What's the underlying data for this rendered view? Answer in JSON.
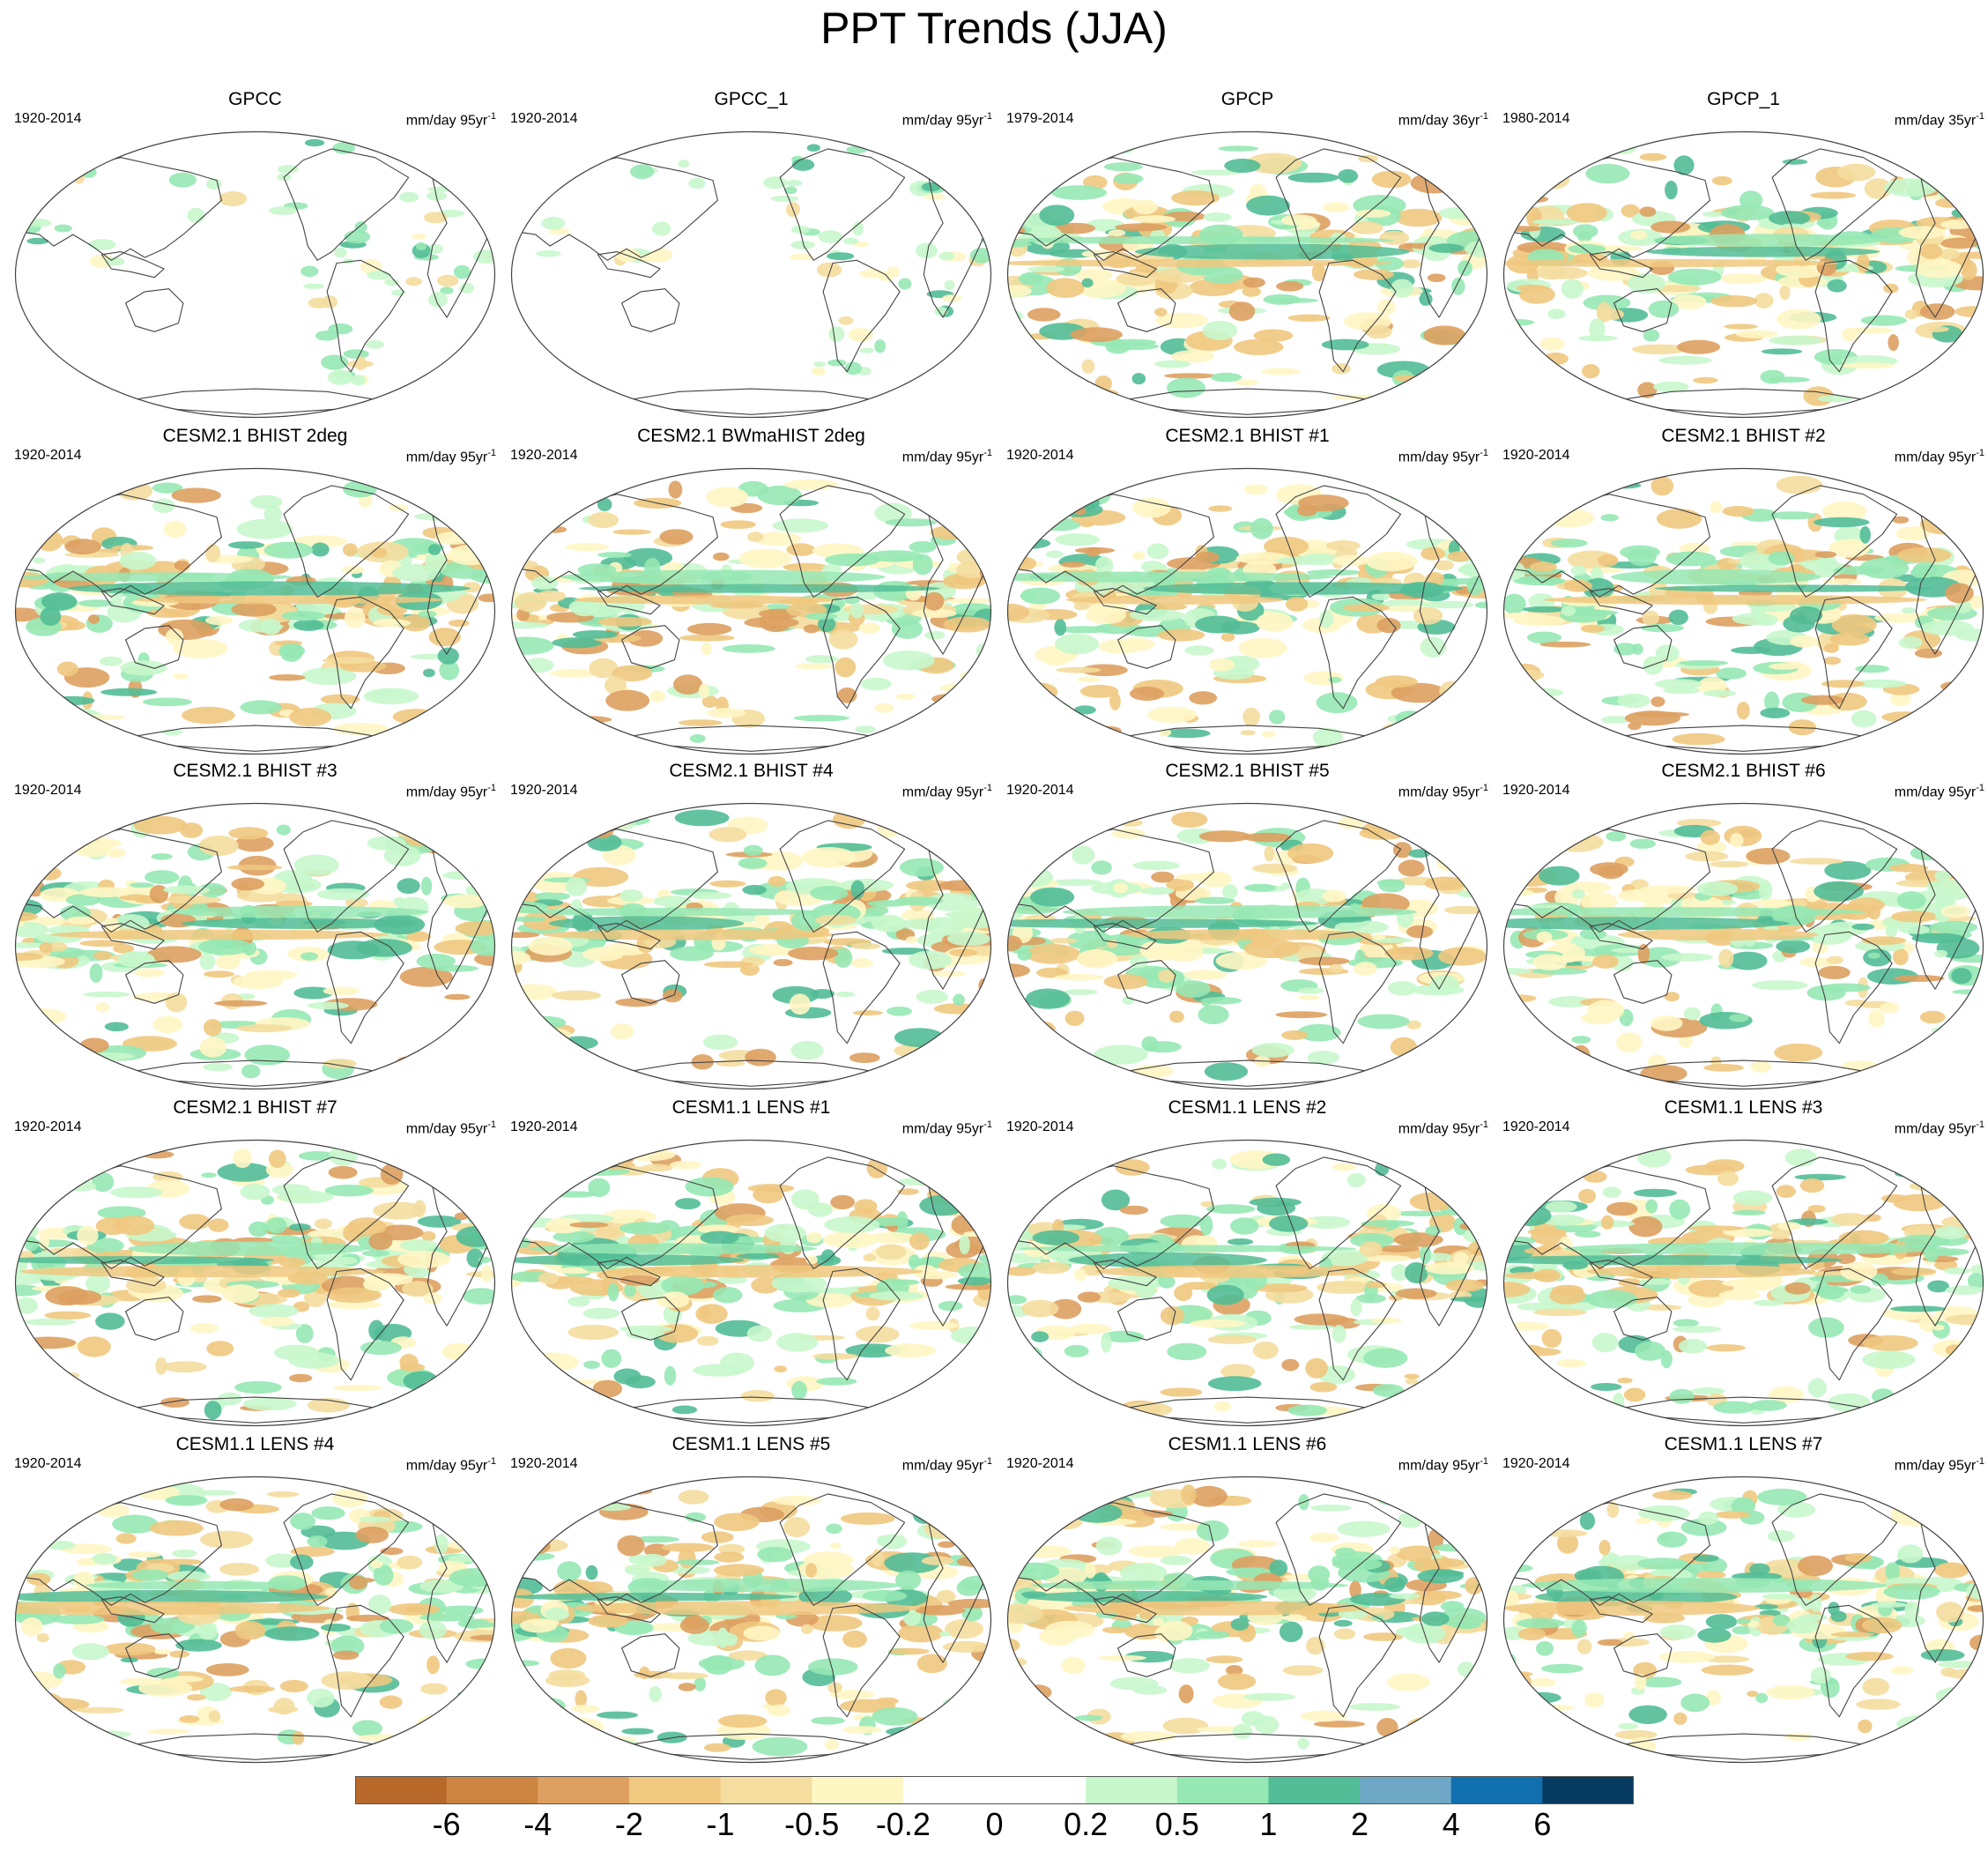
{
  "title": "PPT Trends (JJA)",
  "chart_data": {
    "type": "heatmap",
    "projection": "global map, ellipse",
    "grid": "4 columns x 5 rows",
    "panels": [
      {
        "title": "GPCC",
        "period": "1920-2014",
        "units": "mm/day",
        "trend_period": "95yr",
        "coverage": "land only"
      },
      {
        "title": "GPCC_1",
        "period": "1920-2014",
        "units": "mm/day",
        "trend_period": "95yr",
        "coverage": "land only"
      },
      {
        "title": "GPCP",
        "period": "1979-2014",
        "units": "mm/day",
        "trend_period": "36yr",
        "coverage": "global"
      },
      {
        "title": "GPCP_1",
        "period": "1980-2014",
        "units": "mm/day",
        "trend_period": "35yr",
        "coverage": "global"
      },
      {
        "title": "CESM2.1 BHIST 2deg",
        "period": "1920-2014",
        "units": "mm/day",
        "trend_period": "95yr",
        "coverage": "global"
      },
      {
        "title": "CESM2.1 BWmaHIST 2deg",
        "period": "1920-2014",
        "units": "mm/day",
        "trend_period": "95yr",
        "coverage": "global"
      },
      {
        "title": "CESM2.1 BHIST #1",
        "period": "1920-2014",
        "units": "mm/day",
        "trend_period": "95yr",
        "coverage": "global"
      },
      {
        "title": "CESM2.1 BHIST #2",
        "period": "1920-2014",
        "units": "mm/day",
        "trend_period": "95yr",
        "coverage": "global"
      },
      {
        "title": "CESM2.1 BHIST #3",
        "period": "1920-2014",
        "units": "mm/day",
        "trend_period": "95yr",
        "coverage": "global"
      },
      {
        "title": "CESM2.1 BHIST #4",
        "period": "1920-2014",
        "units": "mm/day",
        "trend_period": "95yr",
        "coverage": "global"
      },
      {
        "title": "CESM2.1 BHIST #5",
        "period": "1920-2014",
        "units": "mm/day",
        "trend_period": "95yr",
        "coverage": "global"
      },
      {
        "title": "CESM2.1 BHIST #6",
        "period": "1920-2014",
        "units": "mm/day",
        "trend_period": "95yr",
        "coverage": "global"
      },
      {
        "title": "CESM2.1 BHIST #7",
        "period": "1920-2014",
        "units": "mm/day",
        "trend_period": "95yr",
        "coverage": "global"
      },
      {
        "title": "CESM1.1 LENS #1",
        "period": "1920-2014",
        "units": "mm/day",
        "trend_period": "95yr",
        "coverage": "global"
      },
      {
        "title": "CESM1.1 LENS #2",
        "period": "1920-2014",
        "units": "mm/day",
        "trend_period": "95yr",
        "coverage": "global"
      },
      {
        "title": "CESM1.1 LENS #3",
        "period": "1920-2014",
        "units": "mm/day",
        "trend_period": "95yr",
        "coverage": "global"
      },
      {
        "title": "CESM1.1 LENS #4",
        "period": "1920-2014",
        "units": "mm/day",
        "trend_period": "95yr",
        "coverage": "global"
      },
      {
        "title": "CESM1.1 LENS #5",
        "period": "1920-2014",
        "units": "mm/day",
        "trend_period": "95yr",
        "coverage": "global"
      },
      {
        "title": "CESM1.1 LENS #6",
        "period": "1920-2014",
        "units": "mm/day",
        "trend_period": "95yr",
        "coverage": "global"
      },
      {
        "title": "CESM1.1 LENS #7",
        "period": "1920-2014",
        "units": "mm/day",
        "trend_period": "95yr",
        "coverage": "global"
      }
    ],
    "colorbar": {
      "labels": [
        "-6",
        "-4",
        "-2",
        "-1",
        "-0.5",
        "-0.2",
        "0",
        "0.2",
        "0.5",
        "1",
        "2",
        "4",
        "6"
      ],
      "colors": [
        "#b8692a",
        "#cc8540",
        "#dda060",
        "#f0c87f",
        "#f4dd9e",
        "#fff6c4",
        "#ffffff",
        "#ffffff",
        "#c8f7cc",
        "#96e8b4",
        "#52bd96",
        "#6fa8c6",
        "#1070b0",
        "#063a5e"
      ]
    }
  }
}
